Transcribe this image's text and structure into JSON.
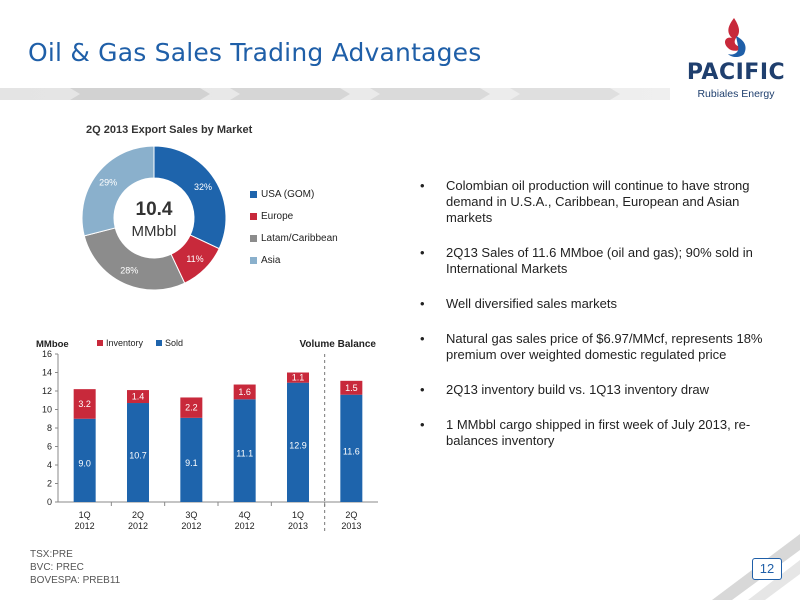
{
  "title": "Oil & Gas Sales Trading Advantages",
  "logo": {
    "word": "PACIFIC",
    "sub": "Rubiales Energy"
  },
  "donut": {
    "title": "2Q 2013 Export Sales by Market",
    "center_value": "10.4",
    "center_unit": "MMbbl",
    "legend": [
      "USA (GOM)",
      "Europe",
      "Latam/Caribbean",
      "Asia"
    ],
    "colors": [
      "#1e64ac",
      "#c8293b",
      "#8c8c8c",
      "#8ab0cc"
    ]
  },
  "bullets": [
    "Colombian oil production will continue to have strong demand in U.S.A., Caribbean, European and Asian markets",
    "2Q13 Sales of 11.6 MMboe (oil and gas); 90% sold in International Markets",
    "Well diversified sales markets",
    "Natural gas sales price of $6.97/MMcf, represents 18% premium over weighted domestic regulated price",
    "2Q13 inventory build vs. 1Q13 inventory draw",
    "1 MMbbl cargo shipped in first week of  July 2013, re-balances inventory"
  ],
  "bullet_marker": "•",
  "tickers": [
    "TSX:PRE",
    "BVC: PREC",
    "BOVESPA: PREB11"
  ],
  "page_number": "12",
  "chart_data": [
    {
      "type": "pie",
      "title": "2Q 2013 Export Sales by Market",
      "labels": [
        "USA (GOM)",
        "Europe",
        "Latam/Caribbean",
        "Asia"
      ],
      "values": [
        32,
        11,
        28,
        29
      ],
      "value_labels": [
        "32%",
        "11%",
        "28%",
        "29%"
      ],
      "legend_position": "right"
    },
    {
      "type": "bar",
      "stacked": true,
      "ylabel": "MMboe",
      "annotation": "Volume Balance",
      "categories": [
        [
          "1Q",
          "2012"
        ],
        [
          "2Q",
          "2012"
        ],
        [
          "3Q",
          "2012"
        ],
        [
          "4Q",
          "2012"
        ],
        [
          "1Q",
          "2013"
        ],
        [
          "2Q",
          "2013"
        ]
      ],
      "series": [
        {
          "name": "Sold",
          "values": [
            9.0,
            10.7,
            9.1,
            11.1,
            12.9,
            11.6
          ],
          "labels": [
            "9.0",
            "10.7",
            "9.1",
            "11.1",
            "12.9",
            "11.6"
          ],
          "color": "#1e64ac"
        },
        {
          "name": "Inventory",
          "values": [
            3.2,
            1.4,
            2.2,
            1.6,
            1.1,
            1.5
          ],
          "labels": [
            "3.2",
            "1.4",
            "2.2",
            "1.6",
            "1.1",
            "1.5"
          ],
          "color": "#c8293b"
        }
      ],
      "legend_order": [
        "Inventory",
        "Sold"
      ],
      "ylim": [
        0,
        16
      ],
      "yticks": [
        "0",
        "2",
        "4",
        "6",
        "8",
        "10",
        "12",
        "14",
        "16"
      ],
      "legend_position": "top"
    }
  ]
}
